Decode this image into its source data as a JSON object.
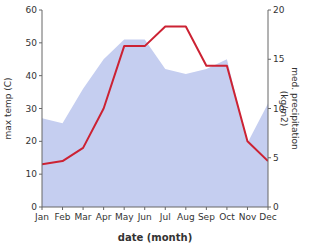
{
  "chart_data": {
    "type": "line",
    "xlabel": "date (month)",
    "ylabel": "max temp (C)",
    "y2label": "med. precipitation\n(kg/m2)",
    "categories": [
      "Jan",
      "Feb",
      "Mar",
      "Apr",
      "May",
      "Jun",
      "Jul",
      "Aug",
      "Sep",
      "Oct",
      "Nov",
      "Dec"
    ],
    "series": [
      {
        "type": "area",
        "axis": "y2",
        "color": "#c5cef0",
        "values": [
          9,
          8.5,
          12,
          15,
          17,
          17,
          14,
          13.5,
          14,
          15,
          6.5,
          10.5
        ]
      },
      {
        "type": "line",
        "color": "#cc2233",
        "values": [
          13,
          14,
          18,
          30,
          49,
          49,
          55,
          55,
          43,
          43,
          20,
          14
        ]
      }
    ],
    "ylim": [
      0,
      60
    ],
    "yticks": [
      0,
      10,
      20,
      30,
      40,
      50,
      60
    ],
    "y2lim": [
      0,
      20
    ],
    "y2ticks": [
      0,
      5,
      10,
      15,
      20
    ],
    "grid": false
  }
}
